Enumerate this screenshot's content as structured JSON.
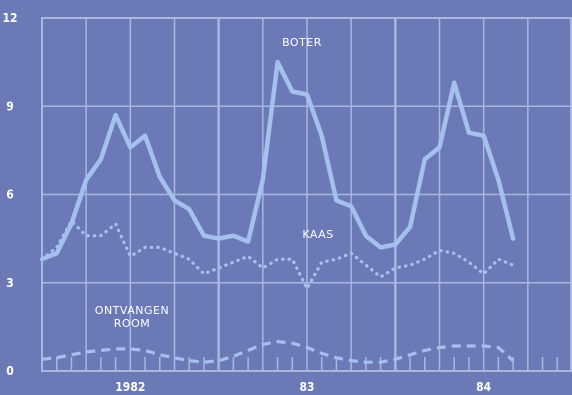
{
  "colors": {
    "background": "#6b7ab6",
    "grid": "#a9b6e0",
    "series": "#a4c0ec",
    "text": "#ffffff"
  },
  "chart_data": {
    "type": "line",
    "title": "",
    "xlabel": "",
    "ylabel": "",
    "ylim": [
      0,
      12
    ],
    "yticks": [
      0,
      3,
      6,
      9,
      12
    ],
    "xlim": [
      0,
      36
    ],
    "x_tick_labels": [
      {
        "x": 6,
        "label": "1982"
      },
      {
        "x": 18,
        "label": "83"
      },
      {
        "x": 30,
        "label": "84"
      }
    ],
    "grid": true,
    "series": [
      {
        "name": "BOTER",
        "style": "solid",
        "x": [
          0,
          1,
          2,
          3,
          4,
          5,
          6,
          7,
          8,
          9,
          10,
          11,
          12,
          13,
          14,
          15,
          16,
          17,
          18,
          19,
          20,
          21,
          22,
          23,
          24,
          25,
          26,
          27,
          28,
          29,
          30,
          31,
          32
        ],
        "values": [
          3.8,
          4.0,
          5.0,
          6.5,
          7.2,
          8.7,
          7.6,
          8.0,
          6.6,
          5.8,
          5.5,
          4.6,
          4.5,
          4.6,
          4.4,
          6.5,
          10.5,
          9.5,
          9.4,
          8.0,
          5.8,
          5.6,
          4.6,
          4.2,
          4.3,
          4.9,
          7.2,
          7.6,
          9.8,
          8.1,
          8.0,
          6.5,
          4.5
        ]
      },
      {
        "name": "KAAS",
        "style": "dotted",
        "x": [
          0,
          1,
          2,
          3,
          4,
          5,
          6,
          7,
          8,
          9,
          10,
          11,
          12,
          13,
          14,
          15,
          16,
          17,
          18,
          19,
          20,
          21,
          22,
          23,
          24,
          25,
          26,
          27,
          28,
          29,
          30,
          31,
          32
        ],
        "values": [
          3.8,
          4.2,
          5.1,
          4.6,
          4.6,
          5.0,
          3.9,
          4.2,
          4.2,
          4.0,
          3.8,
          3.3,
          3.5,
          3.7,
          3.9,
          3.5,
          3.8,
          3.8,
          2.8,
          3.7,
          3.8,
          4.0,
          3.6,
          3.2,
          3.5,
          3.6,
          3.8,
          4.1,
          4.0,
          3.7,
          3.3,
          3.8,
          3.6
        ]
      },
      {
        "name": "ONTVANGEN ROOM",
        "style": "dashed",
        "x": [
          0,
          1,
          2,
          3,
          4,
          5,
          6,
          7,
          8,
          9,
          10,
          11,
          12,
          13,
          14,
          15,
          16,
          17,
          18,
          19,
          20,
          21,
          22,
          23,
          24,
          25,
          26,
          27,
          28,
          29,
          30,
          31,
          32
        ],
        "values": [
          0.4,
          0.45,
          0.55,
          0.65,
          0.7,
          0.75,
          0.75,
          0.7,
          0.55,
          0.45,
          0.35,
          0.3,
          0.35,
          0.5,
          0.7,
          0.9,
          1.0,
          0.95,
          0.8,
          0.6,
          0.45,
          0.35,
          0.3,
          0.3,
          0.4,
          0.55,
          0.7,
          0.8,
          0.85,
          0.85,
          0.85,
          0.8,
          0.35
        ]
      }
    ],
    "annotations": [
      {
        "series": "BOTER",
        "text": "BOTER"
      },
      {
        "series": "KAAS",
        "text": "KAAS"
      },
      {
        "series": "ONTVANGEN ROOM",
        "lines": [
          "ONTVANGEN",
          "ROOM"
        ]
      }
    ]
  }
}
